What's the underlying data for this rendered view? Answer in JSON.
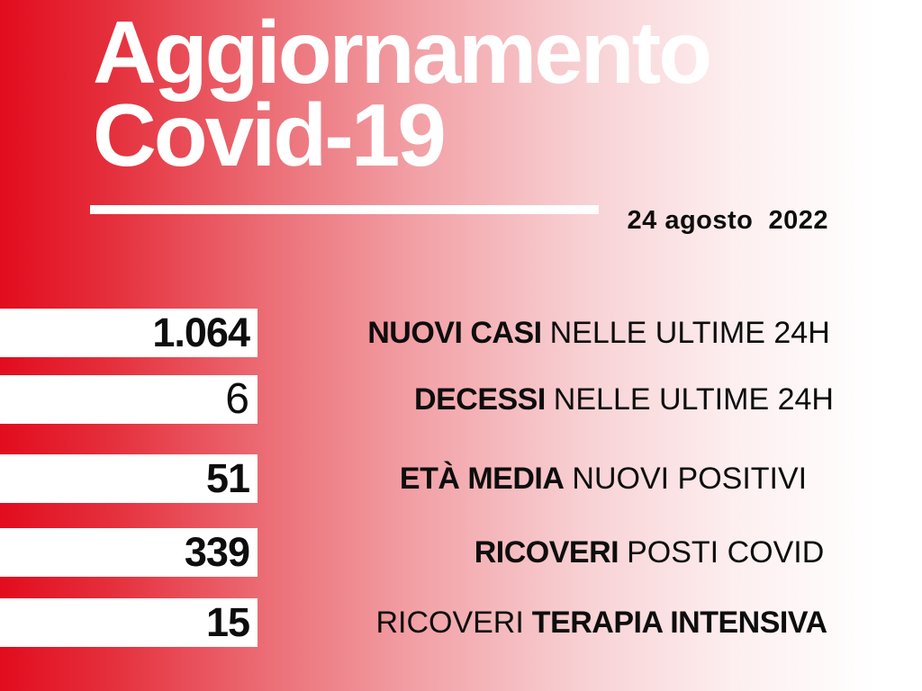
{
  "chart_data": {
    "type": "table",
    "title": "Aggiornamento Covid-19",
    "date": "24 agosto 2022",
    "rows": [
      {
        "label": "NUOVI CASI NELLE ULTIME 24H",
        "value": 1064,
        "value_display": "1.064"
      },
      {
        "label": "DECESSI NELLE ULTIME 24H",
        "value": 6,
        "value_display": "6"
      },
      {
        "label": "ETÀ MEDIA NUOVI POSITIVI",
        "value": 51,
        "value_display": "51"
      },
      {
        "label": "RICOVERI POSTI COVID",
        "value": 339,
        "value_display": "339"
      },
      {
        "label": "RICOVERI TERAPIA INTENSIVA",
        "value": 15,
        "value_display": "15"
      }
    ]
  },
  "header": {
    "title_line1": "Aggiornamento",
    "title_line2": "Covid-19",
    "date": "24 agosto  2022"
  },
  "stats": [
    {
      "value": "1.064",
      "part1": "NUOVI CASI",
      "part2": "NELLE ULTIME 24H"
    },
    {
      "value": "6",
      "part1": "DECESSI",
      "part2": "NELLE ULTIME 24H"
    },
    {
      "value": "51",
      "part1": "ETÀ MEDIA",
      "part2": "NUOVI POSITIVI"
    },
    {
      "value": "339",
      "part1": "RICOVERI",
      "part2": "POSTI COVID"
    },
    {
      "value": "15",
      "part1": "RICOVERI",
      "part2": "TERAPIA INTENSIVA"
    }
  ],
  "colors": {
    "accent_red": "#e30b1e",
    "bar_white": "#ffffff",
    "text_black": "#0d0d0d",
    "title_white": "#ffffff"
  }
}
